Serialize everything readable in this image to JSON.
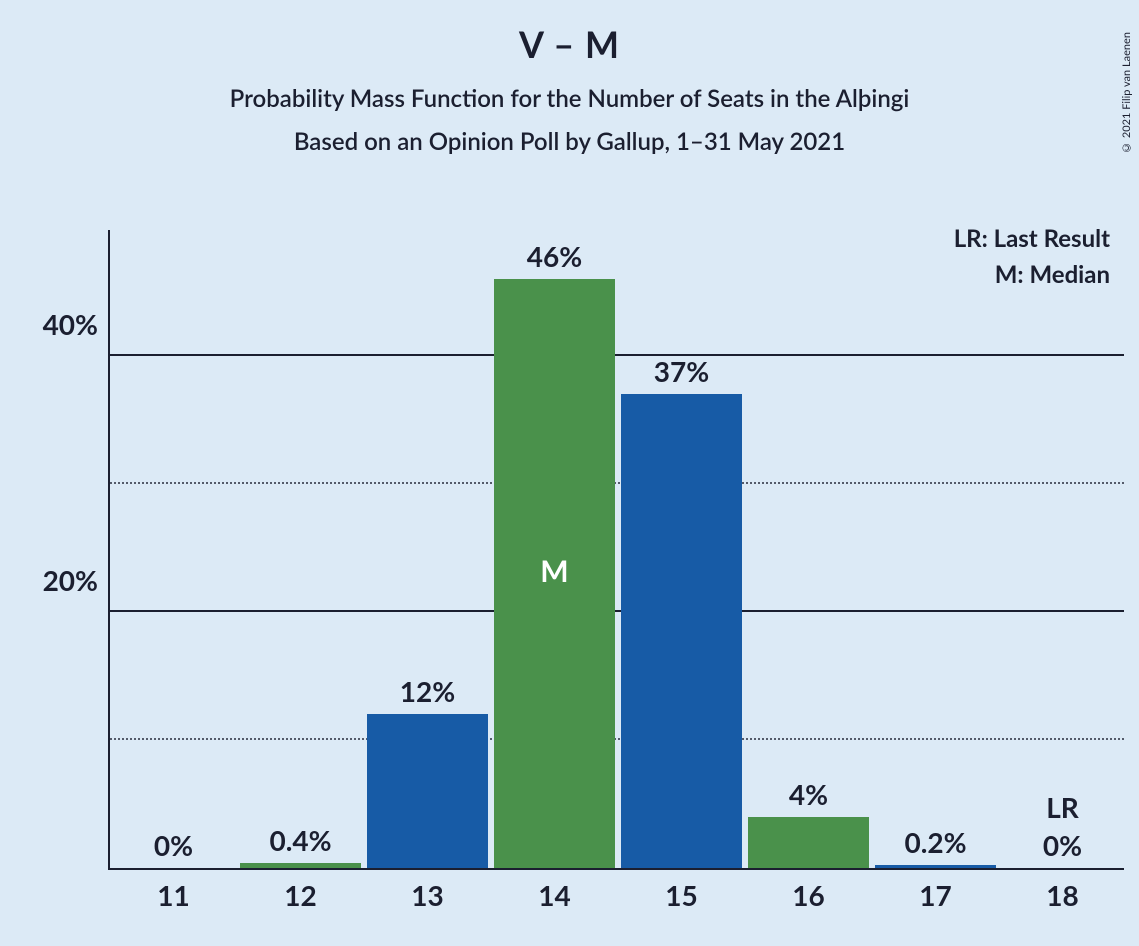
{
  "title": "V – M",
  "subtitle1": "Probability Mass Function for the Number of Seats in the Alþingi",
  "subtitle2": "Based on an Opinion Poll by Gallup, 1–31 May 2021",
  "copyright": "© 2021 Filip van Laenen",
  "legend": {
    "lr": "LR: Last Result",
    "m": "M: Median"
  },
  "chart": {
    "type": "bar",
    "background_color": "#dceaf6",
    "text_color": "#1b1f30",
    "title_fontsize": 36,
    "subtitle_fontsize": 24,
    "axis_fontsize": 28,
    "bar_label_fontsize": 28,
    "ylim": [
      0,
      50
    ],
    "ytick_major": [
      20,
      40
    ],
    "ytick_minor": [
      10,
      30
    ],
    "ytick_labels": [
      "20%",
      "40%"
    ],
    "grid_major_color": "#1b1f30",
    "grid_minor_style": "dotted",
    "categories": [
      11,
      12,
      13,
      14,
      15,
      16,
      17,
      18
    ],
    "values": [
      0,
      0.4,
      12,
      46,
      37,
      4,
      0.2,
      0
    ],
    "value_labels": [
      "0%",
      "0.4%",
      "12%",
      "46%",
      "37%",
      "4%",
      "0.2%",
      "0%"
    ],
    "bar_colors": [
      "#175ba6",
      "#4a914b",
      "#175ba6",
      "#4a914b",
      "#175ba6",
      "#4a914b",
      "#175ba6",
      "#4a914b"
    ],
    "median_index": 3,
    "median_label": "M",
    "last_result_index": 7,
    "last_result_label": "LR",
    "bar_width_ratio": 0.96
  }
}
